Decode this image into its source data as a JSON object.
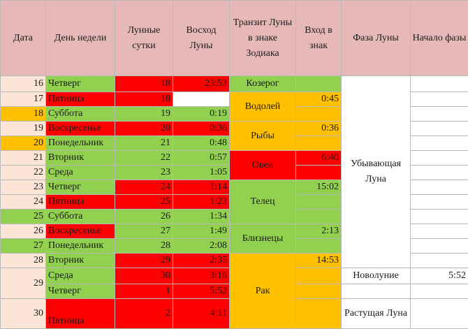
{
  "colors": {
    "header": "#e6b9b8",
    "pink": "#fbe5d6",
    "orange": "#ffc000",
    "red": "#ff0000",
    "green": "#92d050",
    "white": "#ffffff"
  },
  "headers": {
    "date": "Дата",
    "weekday": "День недели",
    "lunar_day": "Лунные сутки",
    "moonrise": "Восход Луны",
    "transit": "Транзит Луны в знаке Зодиака",
    "sign_entry": "Вход в знак",
    "phase": "Фаза Луны",
    "phase_start": "Начало фазы"
  },
  "rows": [
    {
      "date": "16",
      "weekday": "Четверг",
      "lunar_day": "18",
      "moonrise": "23:53"
    },
    {
      "date": "17",
      "weekday": "Пятница",
      "lunar_day": "18",
      "moonrise": ""
    },
    {
      "date": "18",
      "weekday": "Суббота",
      "lunar_day": "19",
      "moonrise": "0:19"
    },
    {
      "date": "19",
      "weekday": "Воскресенье",
      "lunar_day": "20",
      "moonrise": "0:36"
    },
    {
      "date": "20",
      "weekday": "Понедельник",
      "lunar_day": "21",
      "moonrise": "0:48"
    },
    {
      "date": "21",
      "weekday": "Вторник",
      "lunar_day": "22",
      "moonrise": "0:57"
    },
    {
      "date": "22",
      "weekday": "Среда",
      "lunar_day": "23",
      "moonrise": "1:05"
    },
    {
      "date": "23",
      "weekday": "Четверг",
      "lunar_day": "24",
      "moonrise": "1:14"
    },
    {
      "date": "24",
      "weekday": "Пятница",
      "lunar_day": "25",
      "moonrise": "1:23"
    },
    {
      "date": "25",
      "weekday": "Суббота",
      "lunar_day": "26",
      "moonrise": "1:34"
    },
    {
      "date": "26",
      "weekday": "Воскресенье",
      "lunar_day": "27",
      "moonrise": "1:49"
    },
    {
      "date": "27",
      "weekday": "Понедельник",
      "lunar_day": "28",
      "moonrise": "2:08"
    },
    {
      "date": "28",
      "weekday": "Вторник",
      "lunar_day": "29",
      "moonrise": "2:35"
    },
    {
      "date": "29",
      "weekday": "Среда",
      "lunar_day": "30",
      "moonrise": "3:16"
    },
    {
      "date": "",
      "weekday": "Четверг",
      "lunar_day": "1",
      "moonrise": "5:52"
    },
    {
      "date": "30",
      "weekday": "Пятница",
      "lunar_day": "2",
      "moonrise": "4:11"
    }
  ],
  "transits": [
    {
      "sign": "Козерог",
      "entry": ""
    },
    {
      "sign": "Водолей",
      "entry": "0:45"
    },
    {
      "sign": "Рыбы",
      "entry": "0:36"
    },
    {
      "sign": "Овен",
      "entry": "6:40"
    },
    {
      "sign": "Телец",
      "entry": "15:02"
    },
    {
      "sign": "Близнецы",
      "entry": "2:13"
    },
    {
      "sign": "Рак",
      "entry": "14:53"
    }
  ],
  "phases": [
    {
      "name": "Убывающая Луна",
      "start": ""
    },
    {
      "name": "Новолуние",
      "start": "5:52"
    },
    {
      "name": "Растущая Луна",
      "start": ""
    }
  ]
}
